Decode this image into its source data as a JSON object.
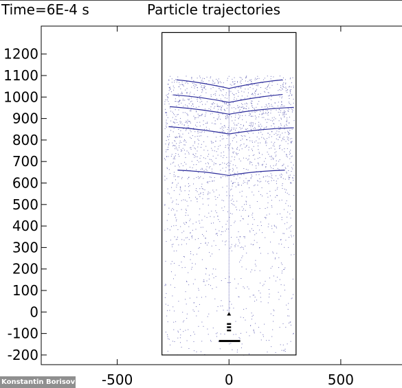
{
  "header": {
    "time_label": "Time=6E-4 s",
    "title": "Particle trajectories"
  },
  "credit": "Konstantin Borisov",
  "colors": {
    "trajectory": "#2b2b9a",
    "particle": "#3a3aa0",
    "axes": "#000000"
  },
  "chart_data": {
    "type": "scatter",
    "title": "Particle trajectories",
    "xlabel": "",
    "ylabel": "",
    "xlim": [
      -840,
      820
    ],
    "ylim": [
      -245,
      1330
    ],
    "x_ticks": [
      -500,
      0,
      500
    ],
    "y_ticks": [
      -200,
      -100,
      0,
      100,
      200,
      300,
      400,
      500,
      600,
      700,
      800,
      900,
      1000,
      1100,
      1200
    ],
    "grid": false,
    "legend": "none",
    "domain_box": {
      "x": [
        -300,
        300
      ],
      "y": [
        -200,
        1300
      ]
    },
    "trajectory_curves": [
      {
        "points": [
          [
            -235,
            1080
          ],
          [
            -130,
            1070
          ],
          [
            0,
            1040
          ],
          [
            130,
            1070
          ],
          [
            240,
            1080
          ]
        ]
      },
      {
        "points": [
          [
            -250,
            1010
          ],
          [
            -130,
            1002
          ],
          [
            0,
            975
          ],
          [
            130,
            1002
          ],
          [
            240,
            1012
          ]
        ]
      },
      {
        "points": [
          [
            -265,
            955
          ],
          [
            -130,
            945
          ],
          [
            0,
            920
          ],
          [
            130,
            945
          ],
          [
            290,
            952
          ]
        ]
      },
      {
        "points": [
          [
            -270,
            862
          ],
          [
            -130,
            852
          ],
          [
            0,
            828
          ],
          [
            130,
            852
          ],
          [
            290,
            857
          ]
        ]
      },
      {
        "points": [
          [
            -230,
            660
          ],
          [
            -110,
            655
          ],
          [
            0,
            635
          ],
          [
            110,
            655
          ],
          [
            250,
            660
          ]
        ]
      }
    ],
    "particle_density_bands": [
      {
        "y": [
          850,
          1100
        ],
        "relative_density": 1.0
      },
      {
        "y": [
          600,
          850
        ],
        "relative_density": 0.75
      },
      {
        "y": [
          300,
          600
        ],
        "relative_density": 0.4
      },
      {
        "y": [
          -200,
          300
        ],
        "relative_density": 0.2
      }
    ],
    "injector": {
      "x": 0,
      "markers_y": [
        -10,
        -55,
        -70,
        -85
      ],
      "bar_y": -135,
      "bar_x": [
        -45,
        50
      ],
      "stream_y": [
        0,
        1040
      ]
    }
  }
}
